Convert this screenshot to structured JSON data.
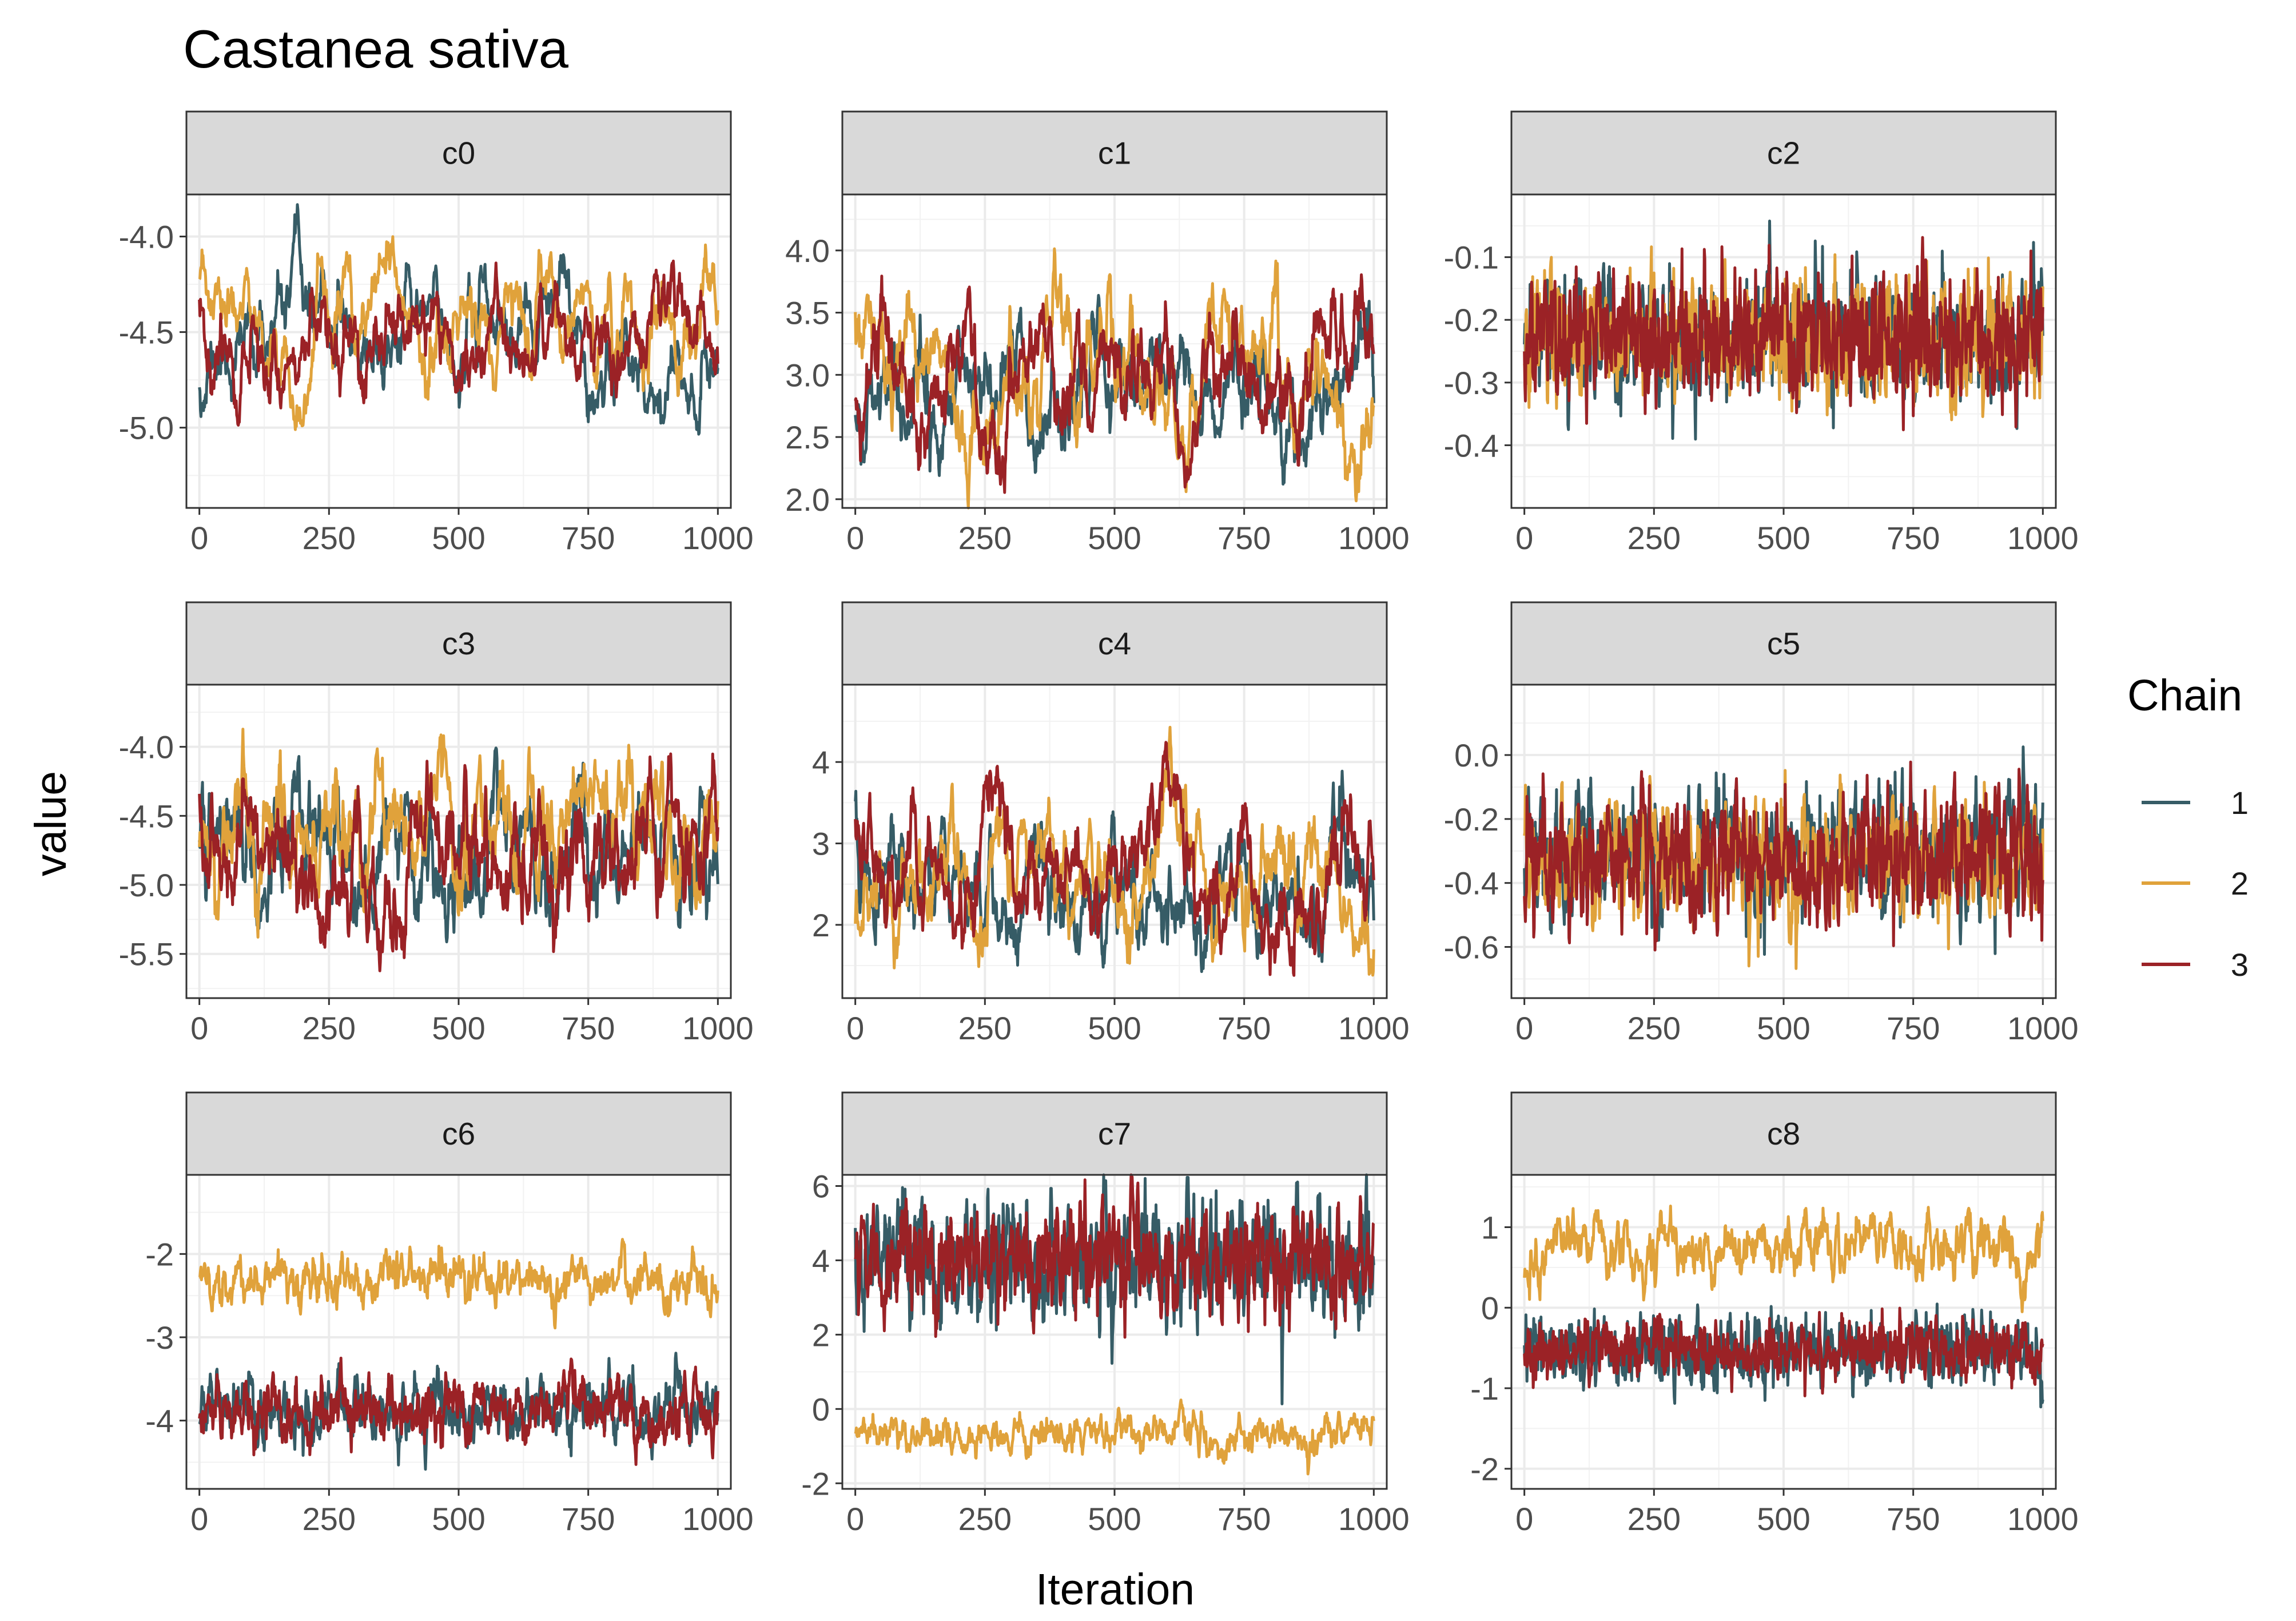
{
  "chart_data": {
    "type": "line",
    "title": "Castanea sativa",
    "xlabel": "Iteration",
    "ylabel": "value",
    "grid": true,
    "legend": {
      "title": "Chain",
      "position": "right",
      "entries": [
        {
          "label": "1",
          "color": "#365C66"
        },
        {
          "label": "2",
          "color": "#E0A23B"
        },
        {
          "label": "3",
          "color": "#9B2226"
        }
      ]
    },
    "x_ticks": [
      "0",
      "250",
      "500",
      "750",
      "1000"
    ],
    "xlim": [
      -25,
      1025
    ],
    "panels": [
      {
        "name": "c0",
        "ylim": [
          -5.42,
          -3.78
        ],
        "y_ticks": [
          -4.0,
          -4.5,
          -5.0
        ],
        "y_tick_labels": [
          "-4.0",
          "-4.5",
          "-5.0"
        ],
        "series": [
          {
            "chain": "1",
            "seed": 11,
            "mean": -4.55,
            "sd": 0.18,
            "phi": 0.96
          },
          {
            "chain": "2",
            "seed": 23,
            "mean": -4.55,
            "sd": 0.18,
            "phi": 0.96
          },
          {
            "chain": "3",
            "seed": 37,
            "mean": -4.52,
            "sd": 0.18,
            "phi": 0.96
          }
        ]
      },
      {
        "name": "c1",
        "ylim": [
          1.93,
          4.45
        ],
        "y_ticks": [
          4.0,
          3.5,
          3.0,
          2.5,
          2.0
        ],
        "y_tick_labels": [
          "4.0",
          "3.5",
          "3.0",
          "2.5",
          "2.0"
        ],
        "series": [
          {
            "chain": "1",
            "seed": 41,
            "mean": 2.95,
            "sd": 0.33,
            "phi": 0.95
          },
          {
            "chain": "2",
            "seed": 53,
            "mean": 2.95,
            "sd": 0.33,
            "phi": 0.95
          },
          {
            "chain": "3",
            "seed": 67,
            "mean": 2.95,
            "sd": 0.33,
            "phi": 0.95
          }
        ]
      },
      {
        "name": "c2",
        "ylim": [
          -0.5,
          0.0
        ],
        "y_ticks": [
          -0.1,
          -0.2,
          -0.3,
          -0.4
        ],
        "y_tick_labels": [
          "-0.1",
          "-0.2",
          "-0.3",
          "-0.4"
        ],
        "series": [
          {
            "chain": "1",
            "seed": 71,
            "mean": -0.23,
            "sd": 0.05,
            "phi": 0.5
          },
          {
            "chain": "2",
            "seed": 83,
            "mean": -0.23,
            "sd": 0.05,
            "phi": 0.5
          },
          {
            "chain": "3",
            "seed": 97,
            "mean": -0.23,
            "sd": 0.05,
            "phi": 0.5
          }
        ]
      },
      {
        "name": "c3",
        "ylim": [
          -5.82,
          -3.55
        ],
        "y_ticks": [
          -4.0,
          -4.5,
          -5.0,
          -5.5
        ],
        "y_tick_labels": [
          "-4.0",
          "-4.5",
          "-5.0",
          "-5.5"
        ],
        "series": [
          {
            "chain": "1",
            "seed": 101,
            "mean": -4.65,
            "sd": 0.28,
            "phi": 0.92
          },
          {
            "chain": "2",
            "seed": 113,
            "mean": -4.6,
            "sd": 0.28,
            "phi": 0.92
          },
          {
            "chain": "3",
            "seed": 127,
            "mean": -4.72,
            "sd": 0.28,
            "phi": 0.92
          }
        ]
      },
      {
        "name": "c4",
        "ylim": [
          1.1,
          4.95
        ],
        "y_ticks": [
          4,
          3,
          2
        ],
        "y_tick_labels": [
          "4",
          "3",
          "2"
        ],
        "series": [
          {
            "chain": "1",
            "seed": 131,
            "mean": 2.45,
            "sd": 0.45,
            "phi": 0.94
          },
          {
            "chain": "2",
            "seed": 149,
            "mean": 2.45,
            "sd": 0.45,
            "phi": 0.94
          },
          {
            "chain": "3",
            "seed": 157,
            "mean": 2.55,
            "sd": 0.5,
            "phi": 0.95
          }
        ]
      },
      {
        "name": "c5",
        "ylim": [
          -0.76,
          0.22
        ],
        "y_ticks": [
          0.0,
          -0.2,
          -0.4,
          -0.6
        ],
        "y_tick_labels": [
          "0.0",
          "-0.2",
          "-0.4",
          "-0.6"
        ],
        "series": [
          {
            "chain": "1",
            "seed": 163,
            "mean": -0.3,
            "sd": 0.1,
            "phi": 0.6
          },
          {
            "chain": "2",
            "seed": 173,
            "mean": -0.32,
            "sd": 0.1,
            "phi": 0.6
          },
          {
            "chain": "3",
            "seed": 181,
            "mean": -0.32,
            "sd": 0.1,
            "phi": 0.6
          }
        ]
      },
      {
        "name": "c6",
        "ylim": [
          -4.82,
          -1.05
        ],
        "y_ticks": [
          -2,
          -3,
          -4
        ],
        "y_tick_labels": [
          "-2",
          "-3",
          "-4"
        ],
        "series": [
          {
            "chain": "1",
            "seed": 191,
            "mean": -3.85,
            "sd": 0.2,
            "phi": 0.75
          },
          {
            "chain": "2",
            "seed": 197,
            "mean": -2.3,
            "sd": 0.16,
            "phi": 0.8
          },
          {
            "chain": "3",
            "seed": 211,
            "mean": -3.87,
            "sd": 0.2,
            "phi": 0.75
          }
        ]
      },
      {
        "name": "c7",
        "ylim": [
          -2.15,
          6.3
        ],
        "y_ticks": [
          6,
          4,
          2,
          0,
          -2
        ],
        "y_tick_labels": [
          "6",
          "4",
          "2",
          "0",
          "-2"
        ],
        "series": [
          {
            "chain": "1",
            "seed": 223,
            "mean": 3.95,
            "sd": 0.8,
            "phi": 0.6
          },
          {
            "chain": "2",
            "seed": 227,
            "mean": -0.65,
            "sd": 0.3,
            "phi": 0.85
          },
          {
            "chain": "3",
            "seed": 229,
            "mean": 4.0,
            "sd": 0.75,
            "phi": 0.6
          }
        ]
      },
      {
        "name": "c8",
        "ylim": [
          -2.25,
          1.65
        ],
        "y_ticks": [
          1,
          0,
          -1,
          -2
        ],
        "y_tick_labels": [
          "1",
          "0",
          "-1",
          "-2"
        ],
        "series": [
          {
            "chain": "1",
            "seed": 233,
            "mean": -0.55,
            "sd": 0.22,
            "phi": 0.5
          },
          {
            "chain": "2",
            "seed": 239,
            "mean": 0.75,
            "sd": 0.22,
            "phi": 0.85
          },
          {
            "chain": "3",
            "seed": 241,
            "mean": -0.55,
            "sd": 0.18,
            "phi": 0.5
          }
        ]
      }
    ]
  }
}
